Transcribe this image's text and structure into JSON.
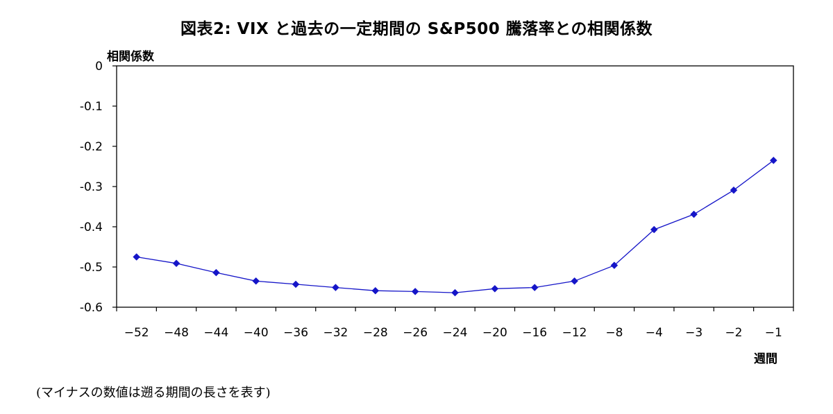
{
  "chart_data": {
    "type": "line",
    "title": "図表2:  VIX と過去の一定期間の S&P500 騰落率との相関係数",
    "ylabel": "相関係数",
    "xlabel": "週間",
    "note": "(マイナスの数値は遡る期間の長さを表す)",
    "categories": [
      "-52",
      "-48",
      "-44",
      "-40",
      "-36",
      "-32",
      "-28",
      "-26",
      "-24",
      "-20",
      "-16",
      "-12",
      "-8",
      "-4",
      "-3",
      "-2",
      "-1"
    ],
    "series": [
      {
        "values": [
          -0.475,
          -0.491,
          -0.514,
          -0.535,
          -0.543,
          -0.551,
          -0.559,
          -0.561,
          -0.564,
          -0.554,
          -0.551,
          -0.535,
          -0.496,
          -0.407,
          -0.369,
          -0.309,
          -0.235
        ],
        "color": "#1515c8",
        "marker": "diamond"
      }
    ],
    "ylim": [
      -0.6,
      0
    ],
    "yticks": [
      0,
      -0.1,
      -0.2,
      -0.3,
      -0.4,
      -0.5,
      -0.6
    ],
    "ytick_labels": [
      "0",
      "-0.1",
      "-0.2",
      "-0.3",
      "-0.4",
      "-0.5",
      "-0.6"
    ],
    "grid": false,
    "legend": "none"
  }
}
